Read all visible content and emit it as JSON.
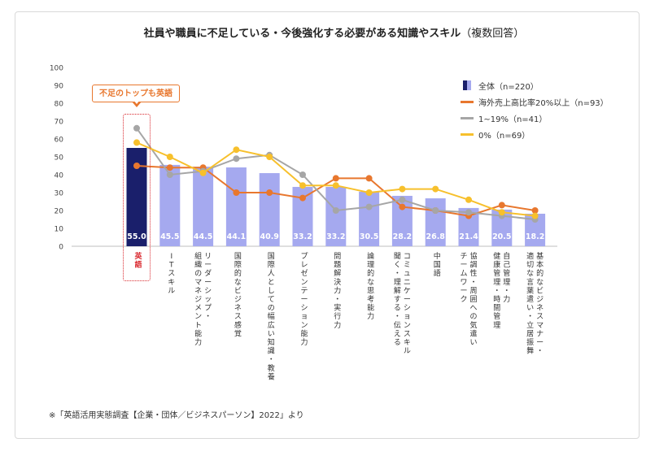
{
  "title": "社員や職員に不足している・今後強化する必要がある知識やスキル",
  "title_paren": "（複数回答）",
  "note": "※「英語活用実態調査【企業・団体／ビジネスパーソン】2022」より",
  "callout": "不足のトップも英語",
  "colors": {
    "bar_main": "#1a1f6b",
    "bar": "#a5a9ef",
    "overseas": "#e8772e",
    "low": "#a6a6a6",
    "zero": "#f7c02c",
    "highlight": "#d9262c"
  },
  "legend": [
    {
      "name": "全体（n=220）",
      "symbol": "bar"
    },
    {
      "name": "海外売上高比率20%以上（n=93）",
      "symbol": "line",
      "color": "#e8772e"
    },
    {
      "name": "1~19%（n=41）",
      "symbol": "line",
      "color": "#a6a6a6"
    },
    {
      "name": "0%（n=69）",
      "symbol": "line",
      "color": "#f7c02c"
    }
  ],
  "chart_data": {
    "type": "bar",
    "title": "社員や職員に不足している・今後強化する必要がある知識やスキル（複数回答）",
    "categories": [
      "英語",
      "ITスキル",
      "リーダーシップ・組織のマネジメント能力",
      "国際的なビジネス感覚",
      "国際人としての幅広い知識・教養",
      "プレゼンテーション能力",
      "問題解決力・実行力",
      "論理的な思考能力",
      "コミュニケーションスキル（聞く・理解する・伝える）",
      "中国語",
      "協調性・周囲への気遣い・チームワーク",
      "自己管理力・健康管理・時間管理",
      "基本的なビジネスマナー・適切な言葉遣い・立居振舞"
    ],
    "labels_vertical": [
      [
        "英",
        "語"
      ],
      [
        "I",
        "T",
        "ス",
        "キ",
        "ル"
      ],
      [
        "リ",
        "ー",
        "ダ",
        "ー",
        "シ",
        "ッ",
        "プ",
        "・"
      ],
      [
        "国",
        "際",
        "的",
        "な",
        "ビ",
        "ジ",
        "ネ",
        "ス",
        "感",
        "覚"
      ],
      [
        "国",
        "際",
        "人",
        "と",
        "し",
        "て",
        "の",
        "幅",
        "広",
        "い",
        "知",
        "識",
        "・",
        "教",
        "養"
      ],
      [
        "プ",
        "レ",
        "ゼ",
        "ン",
        "テ",
        "ー",
        "シ",
        "ョ",
        "ン",
        "能",
        "力"
      ],
      [
        "問",
        "題",
        "解",
        "決",
        "力",
        "・",
        "実",
        "行",
        "力"
      ],
      [
        "論",
        "理",
        "的",
        "な",
        "思",
        "考",
        "能",
        "力"
      ],
      [
        "コ",
        "ミ",
        "ュ",
        "ニ",
        "ケ",
        "ー",
        "シ",
        "ョ",
        "ン",
        "ス",
        "キ",
        "ル"
      ],
      [
        "中",
        "国",
        "語"
      ],
      [
        "協",
        "調",
        "性",
        "・",
        "周",
        "囲",
        "へ",
        "の",
        "気",
        "遣",
        "い"
      ],
      [
        "自",
        "己",
        "管",
        "理",
        "・",
        "力"
      ],
      [
        "基",
        "本",
        "的",
        "な",
        "ビ",
        "ジ",
        "ネ",
        "ス",
        "マ",
        "ナ",
        "ー",
        "・"
      ]
    ],
    "labels_vertical_2": [
      [],
      [],
      [
        "組",
        "織",
        "の",
        "マ",
        "ネ",
        "ジ",
        "メ",
        "ン",
        "ト",
        "能",
        "力"
      ],
      [],
      [],
      [],
      [],
      [],
      [
        "聞",
        "く",
        "・",
        "理",
        "解",
        "す",
        "る",
        "・",
        "伝",
        "え",
        "る"
      ],
      [],
      [
        "チ",
        "ー",
        "ム",
        "ワ",
        "ー",
        "ク"
      ],
      [
        "健",
        "康",
        "管",
        "理",
        "・",
        "時",
        "間",
        "管",
        "理"
      ],
      [
        "適",
        "切",
        "な",
        "言",
        "葉",
        "遣",
        "い",
        "・",
        "立",
        "居",
        "振",
        "舞"
      ]
    ],
    "series": [
      {
        "name": "全体（n=220）",
        "kind": "bar",
        "values": [
          55.0,
          45.5,
          44.5,
          44.1,
          40.9,
          33.2,
          33.2,
          30.5,
          28.2,
          26.8,
          21.4,
          20.5,
          18.2
        ]
      },
      {
        "name": "海外売上高比率20%以上（n=93）",
        "kind": "line",
        "values": [
          45,
          44,
          44,
          30,
          30,
          27,
          38,
          38,
          22,
          20,
          17,
          23,
          20
        ]
      },
      {
        "name": "1~19%（n=41）",
        "kind": "line",
        "values": [
          66,
          40,
          42,
          49,
          51,
          40,
          20,
          22,
          26,
          20,
          19,
          17,
          15
        ]
      },
      {
        "name": "0%（n=69）",
        "kind": "line",
        "values": [
          58,
          50,
          41,
          54,
          50,
          34,
          34,
          30,
          32,
          32,
          26,
          19,
          17
        ]
      }
    ],
    "value_labels": [
      "55.0",
      "45.5",
      "44.5",
      "44.1",
      "40.9",
      "33.2",
      "33.2",
      "30.5",
      "28.2",
      "26.8",
      "21.4",
      "20.5",
      "18.2"
    ],
    "y_ticks": [
      "0",
      "10",
      "20",
      "30",
      "40",
      "50",
      "60",
      "70",
      "80",
      "90",
      "100"
    ],
    "ylim": [
      0,
      100
    ],
    "grid": false,
    "legend_position": "top-right"
  }
}
